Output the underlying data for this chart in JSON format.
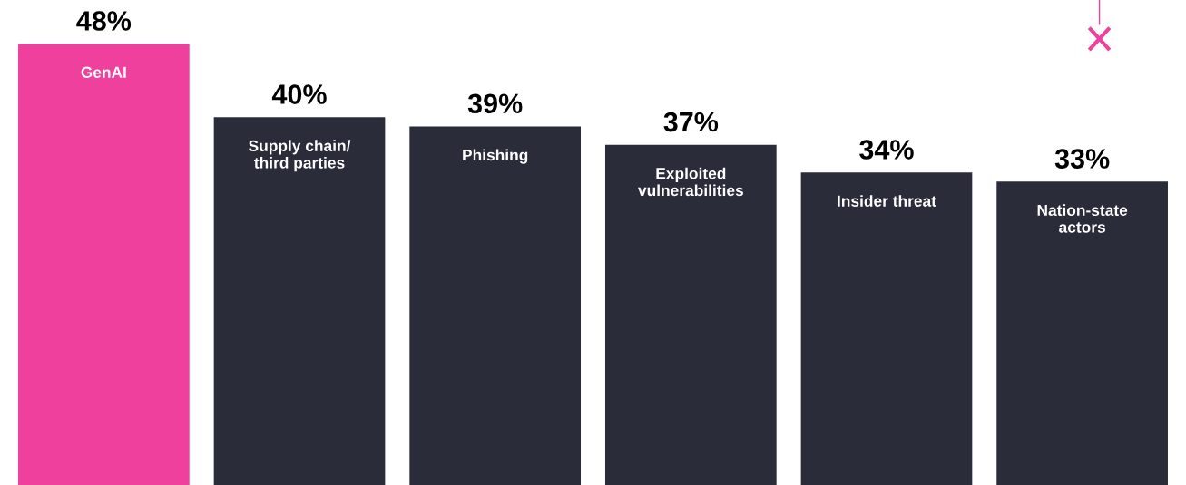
{
  "chart_data": {
    "type": "bar",
    "categories": [
      "GenAI",
      "Supply chain/\nthird parties",
      "Phishing",
      "Exploited\nvulnerabilities",
      "Insider threat",
      "Nation-state\nactors"
    ],
    "values": [
      48,
      40,
      39,
      37,
      34,
      33
    ],
    "colors": [
      "#f0409e",
      "#2a2c3a",
      "#2a2c3a",
      "#2a2c3a",
      "#2a2c3a",
      "#2a2c3a"
    ],
    "value_labels": [
      "48%",
      "40%",
      "39%",
      "37%",
      "34%",
      "33%"
    ],
    "data_labels": false
  }
}
